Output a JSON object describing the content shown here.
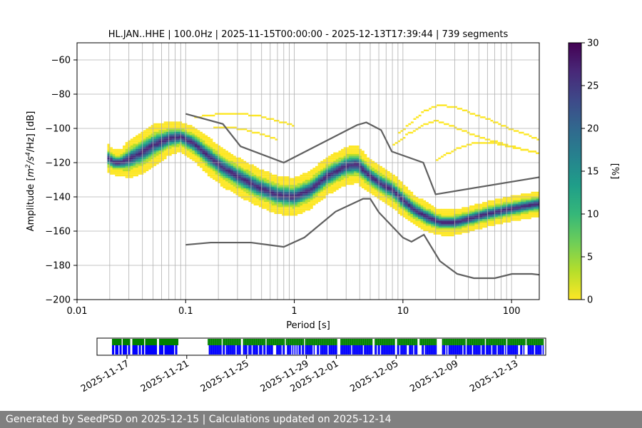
{
  "chart_data": [
    {
      "type": "heatmap",
      "title": "HL.JAN..HHE | 100.0Hz | 2025-11-15T00:00:00 - 2025-12-13T17:39:44 | 739 segments",
      "xlabel": "Period [s]",
      "ylabel": "Amplitude [m²/s⁴/Hz] [dB]",
      "ylabel_parts": {
        "a": "Amplitude [",
        "m": "m",
        "e1": "2",
        "s": "/s",
        "e2": "4",
        "h": "/Hz] [dB]"
      },
      "xscale": "log",
      "xlim": [
        0.01,
        180
      ],
      "ylim": [
        -200,
        -50
      ],
      "xticks": [
        {
          "value": 0.01,
          "label": "0.01"
        },
        {
          "value": 0.1,
          "label": "0.1"
        },
        {
          "value": 1,
          "label": "1"
        },
        {
          "value": 10,
          "label": "10"
        },
        {
          "value": 100,
          "label": "100"
        }
      ],
      "yticks": [
        {
          "value": -60,
          "label": "−60"
        },
        {
          "value": -80,
          "label": "−80"
        },
        {
          "value": -100,
          "label": "−100"
        },
        {
          "value": -120,
          "label": "−120"
        },
        {
          "value": -140,
          "label": "−140"
        },
        {
          "value": -160,
          "label": "−160"
        },
        {
          "value": -180,
          "label": "−180"
        },
        {
          "value": -200,
          "label": "−200"
        }
      ],
      "grid": true,
      "colorbar": {
        "label": "[%]",
        "range": [
          0,
          30
        ],
        "ticks": [
          {
            "value": 0,
            "label": "0"
          },
          {
            "value": 5,
            "label": "5"
          },
          {
            "value": 10,
            "label": "10"
          },
          {
            "value": 15,
            "label": "15"
          },
          {
            "value": 20,
            "label": "20"
          },
          {
            "value": 25,
            "label": "25"
          },
          {
            "value": 30,
            "label": "30"
          }
        ],
        "colors": [
          "#fde725",
          "#b5de2b",
          "#6ece58",
          "#35b779",
          "#1f9e89",
          "#26828e",
          "#31688e",
          "#3e4989",
          "#482878",
          "#440154"
        ]
      },
      "mode_curve": {
        "period": [
          0.019,
          0.022,
          0.025,
          0.03,
          0.04,
          0.05,
          0.07,
          0.09,
          0.12,
          0.16,
          0.22,
          0.3,
          0.45,
          0.7,
          1.0,
          1.4,
          2.0,
          3.0,
          3.8,
          5.0,
          6.5,
          8.0,
          10,
          13,
          17,
          22,
          30,
          40,
          60,
          100,
          180
        ],
        "db": [
          -117,
          -120,
          -120,
          -118,
          -114,
          -110,
          -106,
          -105,
          -109,
          -116,
          -123,
          -128,
          -134,
          -139,
          -140,
          -136,
          -128,
          -122,
          -121,
          -128,
          -133,
          -136,
          -142,
          -148,
          -152,
          -155,
          -155,
          -153,
          -150,
          -147,
          -144
        ],
        "spread_db": [
          7,
          6,
          6,
          9,
          10,
          10,
          8,
          7,
          8,
          9,
          9,
          9,
          9,
          9,
          9,
          9,
          9,
          9,
          9,
          8,
          8,
          8,
          8,
          7,
          7,
          6,
          6,
          6,
          6,
          6,
          6
        ]
      },
      "scatter_tail": [
        {
          "period": [
            0.12,
            0.16,
            0.22,
            0.3,
            0.45,
            0.7,
            1.0
          ],
          "db": [
            -93,
            -92,
            -91,
            -91,
            -92,
            -95,
            -98
          ]
        },
        {
          "period": [
            0.18,
            0.25,
            0.35,
            0.5,
            0.7
          ],
          "db": [
            -99,
            -99,
            -100,
            -103,
            -106
          ]
        },
        {
          "period": [
            9,
            12,
            16,
            22,
            30,
            40,
            60,
            100,
            180
          ],
          "db": [
            -103,
            -96,
            -89,
            -86,
            -87,
            -90,
            -94,
            -100,
            -106
          ]
        },
        {
          "period": [
            8,
            11,
            15,
            20,
            28,
            40,
            60,
            100,
            180
          ],
          "db": [
            -110,
            -103,
            -98,
            -95,
            -98,
            -102,
            -106,
            -110,
            -114
          ]
        },
        {
          "period": [
            20,
            30,
            45,
            70,
            110,
            180
          ],
          "db": [
            -118,
            -112,
            -108,
            -108,
            -111,
            -114
          ]
        }
      ],
      "noise_models": [
        {
          "name": "NHNM",
          "period": [
            0.1,
            0.22,
            0.32,
            0.8,
            3.8,
            4.6,
            6.3,
            7.9,
            15.4,
            20,
            180
          ],
          "db": [
            -91.5,
            -97.4,
            -110.5,
            -120,
            -98,
            -96.5,
            -101,
            -113.5,
            -120,
            -138.5,
            -128.5
          ]
        },
        {
          "name": "NLNM",
          "period": [
            0.1,
            0.17,
            0.4,
            0.8,
            1.24,
            2.4,
            4.3,
            5.0,
            6.0,
            10,
            12,
            15.6,
            21.9,
            31.6,
            45,
            70,
            101,
            154,
            180
          ],
          "db": [
            -168,
            -166.7,
            -166.7,
            -169.2,
            -163.7,
            -148.6,
            -141.1,
            -141.1,
            -149,
            -163.8,
            -166.2,
            -162.1,
            -177.5,
            -185,
            -187.5,
            -187.5,
            -185,
            -185,
            -185.5
          ]
        }
      ]
    },
    {
      "type": "timeline",
      "start": "2025-11-15",
      "end": "2025-12-15",
      "tick_labels": [
        "2025-11-17",
        "2025-11-21",
        "2025-11-25",
        "2025-11-29",
        "2025-12-01",
        "2025-12-05",
        "2025-12-09",
        "2025-12-13"
      ],
      "tick_days": [
        2,
        6,
        10,
        14,
        16,
        20,
        24,
        28
      ],
      "coverage_days": [
        [
          1.0,
          5.4
        ],
        [
          7.4,
          29.8
        ]
      ],
      "gap_days": [
        [
          1.6,
          1.7
        ],
        [
          2.2,
          2.3
        ],
        [
          3.1,
          3.2
        ],
        [
          4.0,
          4.1
        ],
        [
          8.3,
          8.4
        ],
        [
          9.6,
          9.7
        ],
        [
          11.2,
          11.3
        ],
        [
          12.5,
          12.6
        ],
        [
          13.8,
          13.9
        ],
        [
          16.0,
          16.2
        ],
        [
          18.4,
          18.5
        ],
        [
          19.9,
          20.0
        ],
        [
          21.4,
          21.5
        ],
        [
          22.7,
          23.0
        ],
        [
          24.6,
          24.7
        ],
        [
          25.9,
          26.0
        ],
        [
          27.3,
          27.4
        ],
        [
          28.6,
          28.7
        ]
      ],
      "colors": {
        "upper": "#008000",
        "lower": "#0000ff"
      }
    }
  ],
  "footer": {
    "text": "Generated by SeedPSD on 2025-12-15 | Calculations updated on 2025-12-14"
  }
}
